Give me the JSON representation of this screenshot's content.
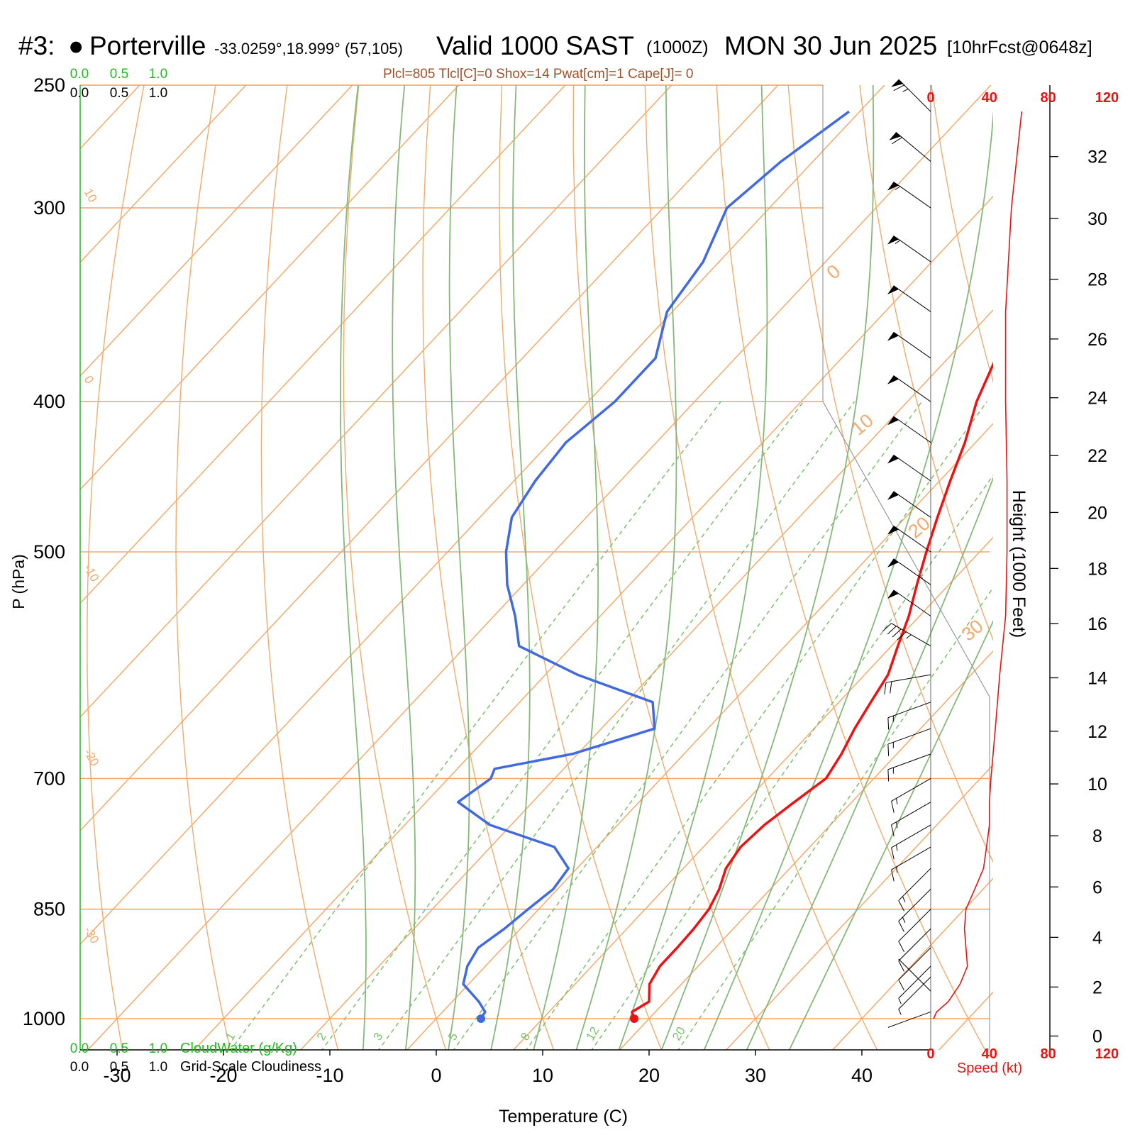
{
  "header": {
    "station_number": "#3:",
    "station_name": "Porterville",
    "coords": "-33.0259°,18.999° (57,105)",
    "valid_label": "Valid 1000 SAST",
    "zulu": "(1000Z)",
    "date": "MON 30 Jun 2025",
    "forecast": "[10hrFcst@0648z]",
    "indices": "Plcl=805 Tlcl[C]=0 Shox=14 Pwat[cm]=1 Cape[J]= 0"
  },
  "colors": {
    "temperature": "#ee1111",
    "dewpoint": "#4169e1",
    "isotherms_isobars": "#f5a96b",
    "moist_adiabats": "#86b87a",
    "mixing_ratio": "#7cbf6c",
    "cloud_green": "#22bb22",
    "wind_speed": "#ee1111",
    "isobar_label": "#f5a96b"
  },
  "chart_data": {
    "type": "line",
    "title": "",
    "xlabel": "Temperature (C)",
    "ylabel": "P (hPa)",
    "x_ticks": [
      -30,
      -20,
      -10,
      0,
      10,
      20,
      30,
      40
    ],
    "x_tick_labels": [
      "-30",
      "-20",
      "-10",
      "0",
      "10",
      "20",
      "30",
      "40"
    ],
    "pressure_ticks": [
      250,
      300,
      400,
      500,
      700,
      850,
      1000
    ],
    "pressure_tick_labels": [
      "250",
      "300",
      "400",
      "500",
      "700",
      "850",
      "1000"
    ],
    "pressure_range_hpa": [
      250,
      1050
    ],
    "log_pressure_axis": true,
    "skewed_isotherm_labels": [
      "10",
      "0",
      "-10",
      "-20",
      "-30"
    ],
    "right_isotherm_labels": [
      "0",
      "10",
      "20",
      "30"
    ],
    "mixing_ratio_labels": [
      "1",
      "2",
      "3",
      "5",
      "8",
      "12",
      "20"
    ],
    "series": [
      {
        "name": "",
        "role": "temperature",
        "pressure_hpa": [
          1000,
          990,
          975,
          950,
          925,
          900,
          875,
          850,
          825,
          800,
          775,
          750,
          725,
          700,
          675,
          650,
          625,
          600,
          575,
          550,
          525,
          500,
          475,
          450,
          425,
          400,
          375,
          350,
          325,
          300,
          275,
          260
        ],
        "temp_c": [
          18.6,
          17.8,
          18.5,
          17.0,
          16.4,
          16.4,
          16.3,
          16.0,
          15.2,
          14.0,
          13.5,
          13.8,
          14.6,
          15.5,
          14.8,
          13.8,
          13.0,
          12.2,
          10.6,
          9.0,
          7.0,
          5.0,
          3.0,
          1.0,
          -1.0,
          -3.5,
          -5.5,
          -7.5,
          -9.5,
          -11.5,
          -14.0,
          -15.5
        ]
      },
      {
        "name": "",
        "role": "dewpoint",
        "pressure_hpa": [
          1000,
          990,
          975,
          950,
          925,
          900,
          875,
          850,
          825,
          800,
          775,
          750,
          725,
          700,
          690,
          675,
          650,
          625,
          600,
          575,
          550,
          525,
          500,
          475,
          450,
          425,
          400,
          375,
          350,
          325,
          300,
          280,
          260
        ],
        "temp_c": [
          4.2,
          4.0,
          2.5,
          -0.5,
          -1.7,
          -2.3,
          -1.5,
          -1.0,
          -0.4,
          -0.8,
          -4.0,
          -12.0,
          -17.0,
          -16.0,
          -16.5,
          -10.5,
          -5.0,
          -7.5,
          -17.0,
          -25.0,
          -28.0,
          -31.5,
          -34.5,
          -37.0,
          -38.0,
          -38.5,
          -37.5,
          -37.5,
          -40.5,
          -41.5,
          -44.0,
          -43.0,
          -41.0
        ]
      }
    ],
    "moist_adiabat_labels": [],
    "legend_bottom": [
      {
        "values": [
          "0.0",
          "0.5",
          "1.0"
        ],
        "label": "CloudWater (g/Kg)"
      },
      {
        "values": [
          "0.0",
          "0.5",
          "1.0"
        ],
        "label": "Grid-Scale Cloudiness"
      }
    ],
    "legend_top": [
      {
        "values": [
          "0.0",
          "0.5",
          "1.0"
        ]
      },
      {
        "values": [
          "0.0",
          "0.5",
          "1.0"
        ]
      }
    ],
    "height_axis": {
      "label": "Height (1000 Feet)",
      "ticks": [
        0,
        2,
        4,
        6,
        8,
        10,
        12,
        14,
        16,
        18,
        20,
        22,
        24,
        26,
        28,
        30,
        32
      ],
      "tick_labels": [
        "0",
        "2",
        "4",
        "6",
        "8",
        "10",
        "12",
        "14",
        "16",
        "18",
        "20",
        "22",
        "24",
        "26",
        "28",
        "30",
        "32"
      ]
    },
    "wind_speed_profile": {
      "xlabel": "Speed (kt)",
      "x_ticks": [
        0,
        40,
        80,
        120
      ],
      "x_tick_labels": [
        "0",
        "40",
        "80",
        "120"
      ],
      "pressure_hpa": [
        1000,
        990,
        975,
        950,
        925,
        900,
        875,
        850,
        825,
        800,
        775,
        750,
        725,
        700,
        650,
        600,
        550,
        500,
        450,
        400,
        350,
        300,
        260
      ],
      "speed_kt": [
        2,
        4,
        12,
        20,
        25,
        24,
        23,
        24,
        30,
        36,
        38,
        40,
        40,
        41,
        44,
        47,
        51,
        52,
        52,
        51,
        51,
        55,
        62
      ]
    },
    "wind_barbs": {
      "pressure_hpa": [
        990,
        960,
        940,
        925,
        900,
        875,
        850,
        825,
        800,
        775,
        750,
        725,
        700,
        675,
        650,
        625,
        600,
        575,
        550,
        525,
        500,
        475,
        450,
        425,
        400,
        375,
        350,
        325,
        300,
        280,
        260
      ],
      "direction_deg": [
        250,
        315,
        225,
        225,
        225,
        225,
        225,
        225,
        225,
        240,
        240,
        240,
        240,
        250,
        250,
        250,
        260,
        300,
        305,
        305,
        305,
        305,
        305,
        305,
        305,
        305,
        305,
        305,
        305,
        310,
        315
      ],
      "speed_kt": [
        2,
        3,
        5,
        8,
        10,
        10,
        12,
        15,
        15,
        15,
        15,
        15,
        15,
        15,
        15,
        15,
        20,
        45,
        50,
        50,
        50,
        50,
        50,
        50,
        50,
        50,
        50,
        55,
        55,
        60,
        65
      ]
    },
    "markers": {
      "surface_temp_c": 18.6,
      "surface_dewpoint_c": 4.2,
      "surface_pressure_hpa": 1000
    }
  }
}
